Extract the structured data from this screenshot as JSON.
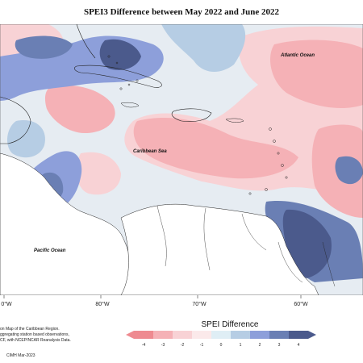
{
  "title": "SPEI3 Difference between May 2022 and June 2022",
  "labels": {
    "atlantic": "Atlantic Ocean",
    "caribbean": "Caribbean Sea",
    "pacific": "Pacific Ocean"
  },
  "longitude_ticks": [
    "0°W",
    "80°W",
    "70°W",
    "60°W"
  ],
  "legend": {
    "title": "SPEI Difference",
    "ticks": [
      "-4",
      "-3",
      "-2",
      "-1",
      "0",
      "1",
      "2",
      "3",
      "4"
    ],
    "colors": [
      "#ee8a90",
      "#f5b1b6",
      "#f8d2d5",
      "#fbe9ea",
      "#dfeef5",
      "#b6cde4",
      "#8d9fda",
      "#6a7fb4",
      "#4b5a8c"
    ]
  },
  "credit": {
    "line1": "on Map of the Caribbean Region.",
    "line2": "ggregating station based observations,",
    "line3": "CF, with NCEP/NCAR Reanalysis Data.",
    "line4": "CIMH Mar-2023"
  }
}
